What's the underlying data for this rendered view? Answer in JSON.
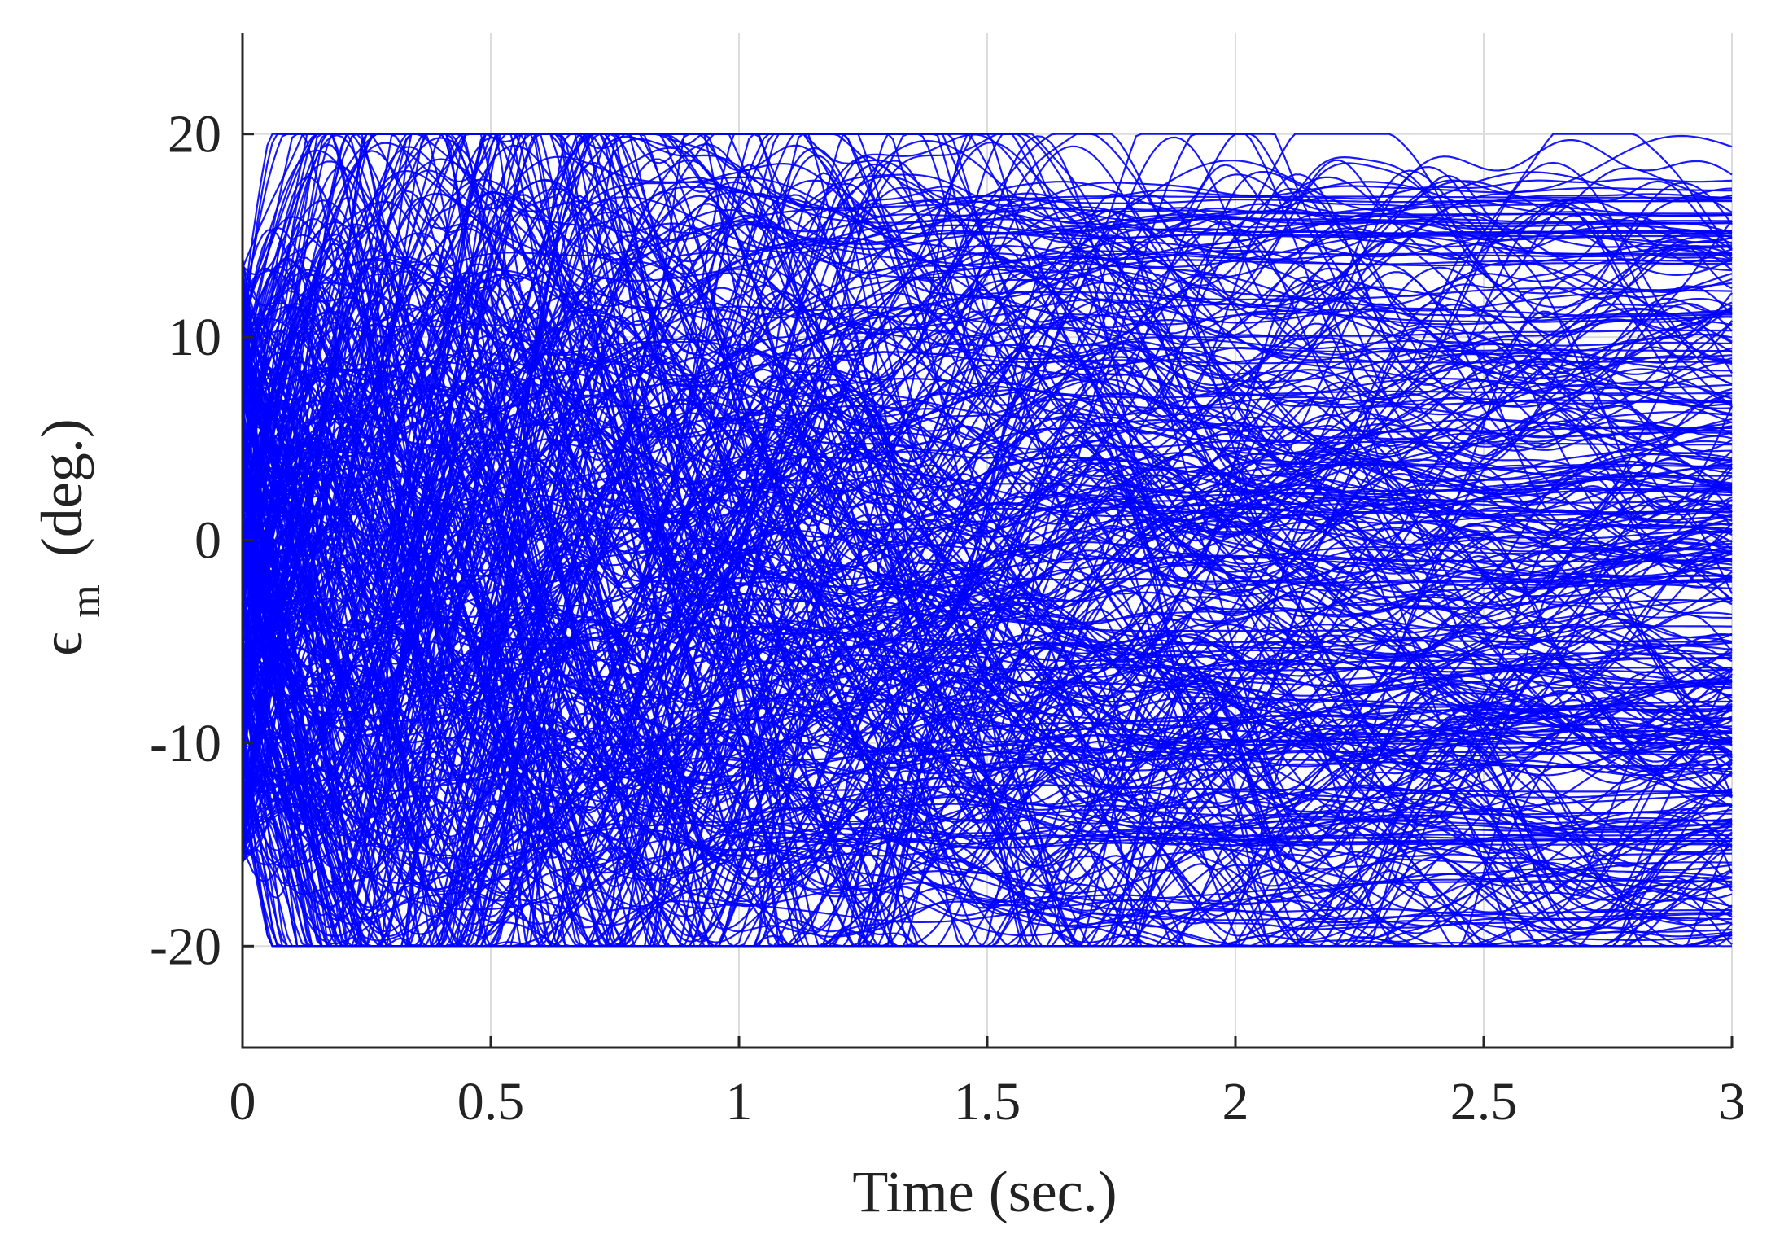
{
  "chart_data": {
    "type": "line",
    "title": "",
    "xlabel": "Time (sec.)",
    "ylabel": {
      "symbol": "ϵ",
      "subscript": "m",
      "unit": "(deg.)"
    },
    "xlim": [
      0,
      3
    ],
    "ylim": [
      -25,
      25
    ],
    "xticks": [
      0,
      0.5,
      1,
      1.5,
      2,
      2.5,
      3
    ],
    "xtick_labels": [
      "0",
      "0.5",
      "1",
      "1.5",
      "2",
      "2.5",
      "3"
    ],
    "yticks": [
      -20,
      -10,
      0,
      10,
      20
    ],
    "ytick_labels": [
      "-20",
      "-10",
      "0",
      "10",
      "20"
    ],
    "grid": true,
    "legend": "none",
    "series_color": "#0000ff",
    "saturation_limits": [
      -20,
      20
    ],
    "series_description": {
      "count": 400,
      "x_range": [
        0,
        3
      ],
      "initial_range": [
        -16,
        14
      ],
      "final_range": [
        -19.5,
        17.5
      ],
      "saturated_until": 1.9
    }
  }
}
